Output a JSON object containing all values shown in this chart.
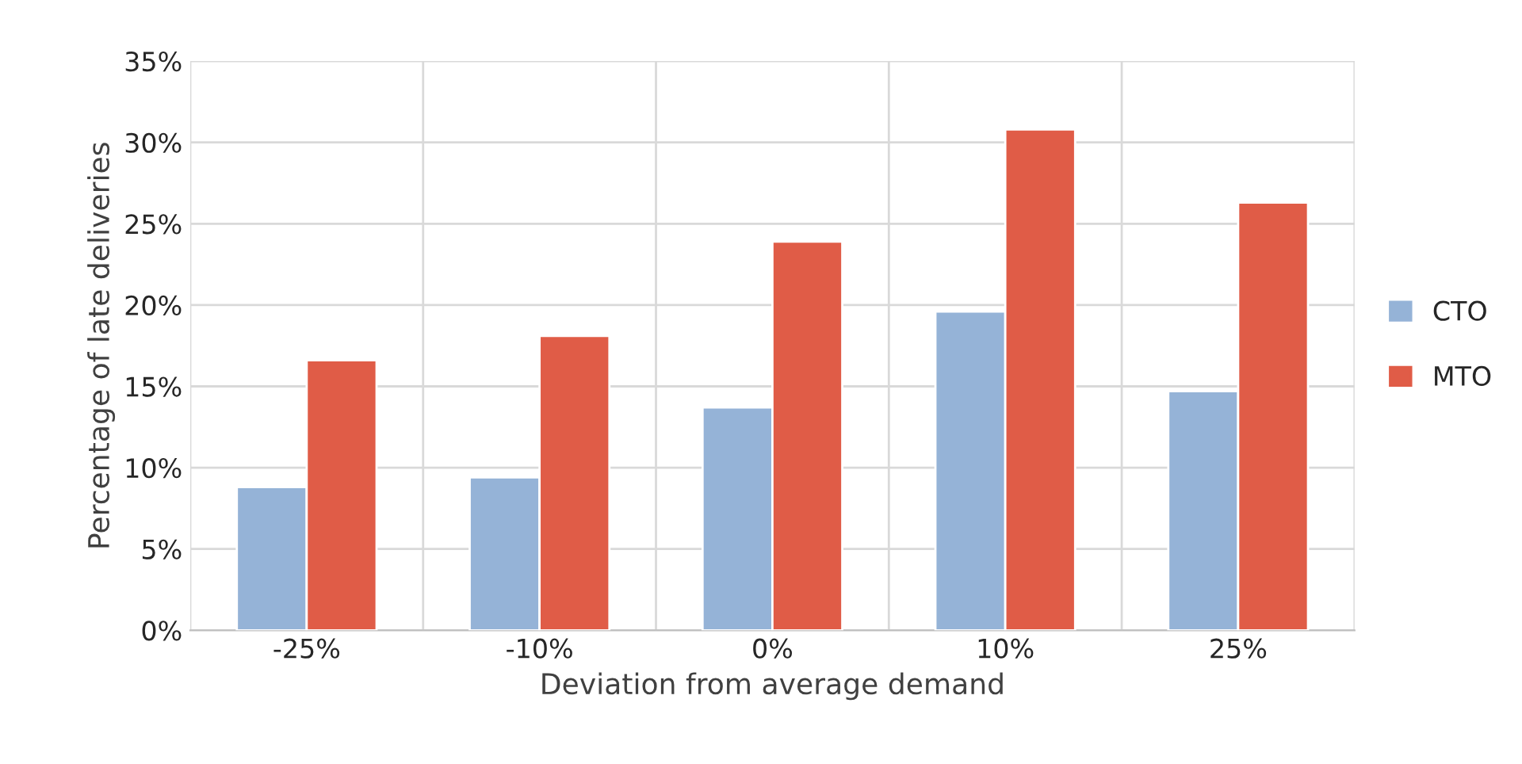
{
  "chart_data": {
    "type": "bar",
    "xlabel": "Deviation from average demand",
    "ylabel": "Percentage of late deliveries",
    "categories": [
      "-25%",
      "-10%",
      "0%",
      "10%",
      "25%"
    ],
    "series": [
      {
        "name": "CTO",
        "color": "#95b3d7",
        "values": [
          8.8,
          9.4,
          13.7,
          19.6,
          14.7
        ]
      },
      {
        "name": "MTO",
        "color": "#e05c47",
        "values": [
          16.6,
          18.1,
          23.9,
          30.8,
          26.3
        ]
      }
    ],
    "ylim": [
      0,
      35
    ],
    "yticks": [
      {
        "value": 0,
        "label": "0%"
      },
      {
        "value": 5,
        "label": "5%"
      },
      {
        "value": 10,
        "label": "10%"
      },
      {
        "value": 15,
        "label": "15%"
      },
      {
        "value": 20,
        "label": "20%"
      },
      {
        "value": 25,
        "label": "25%"
      },
      {
        "value": 30,
        "label": "30%"
      },
      {
        "value": 35,
        "label": "35%"
      }
    ],
    "grid": true,
    "legend": "right"
  }
}
